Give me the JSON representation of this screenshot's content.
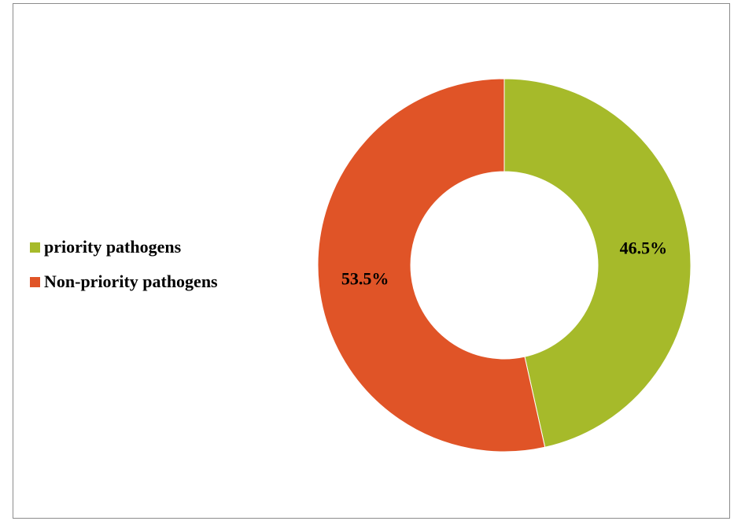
{
  "chart_data": {
    "type": "pie",
    "subtype": "donut",
    "title": "",
    "categories": [
      "priority pathogens",
      "Non-priority pathogens"
    ],
    "values": [
      46.5,
      53.5
    ],
    "unit": "%",
    "data_labels": [
      "46.5%",
      "53.5%"
    ],
    "colors": [
      "#a6ba2a",
      "#e05427"
    ],
    "legend_position": "left",
    "start_angle_deg": 0,
    "direction": "clockwise"
  }
}
